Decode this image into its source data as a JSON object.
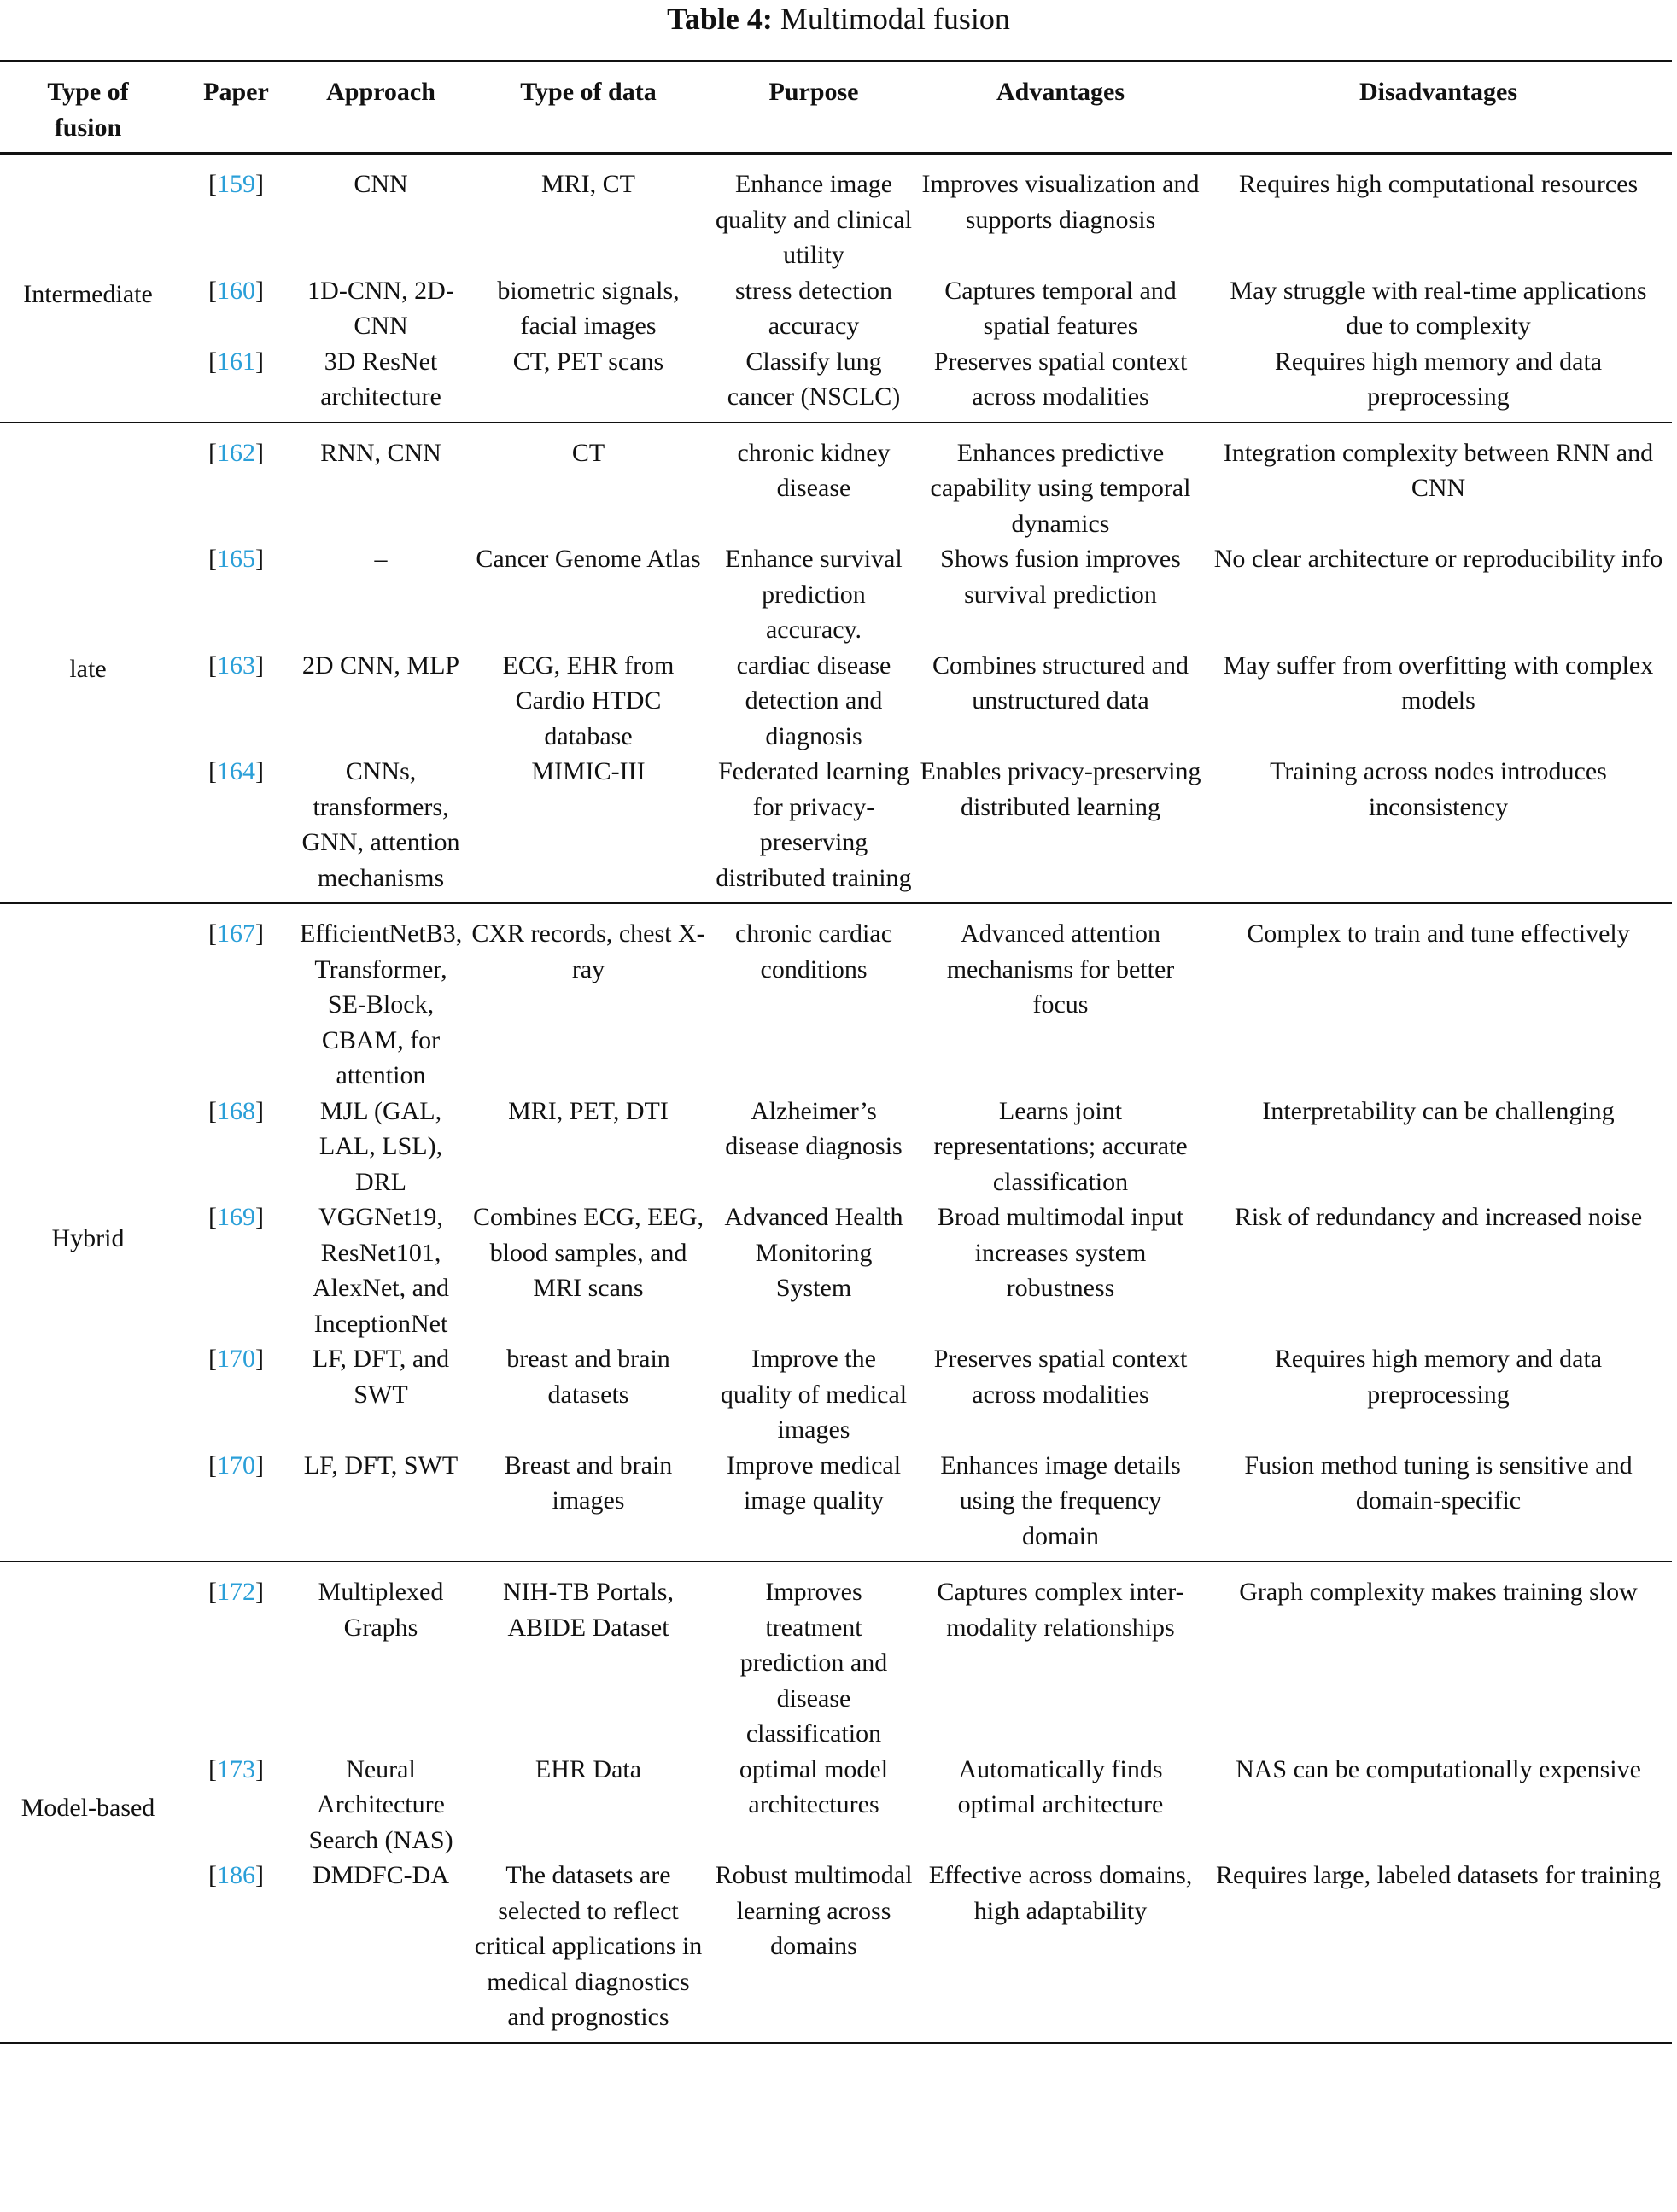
{
  "title": {
    "label": "Table 4:",
    "text": " Multimodal fusion"
  },
  "headers": [
    "Type of fusion",
    "Paper",
    "Approach",
    "Type of data",
    "Purpose",
    "Advantages",
    "Disadvantages"
  ],
  "groups": [
    {
      "type": "Intermediate",
      "rows": [
        [
          "159",
          "CNN",
          "MRI, CT",
          "Enhance image quality and clinical utility",
          "Improves visualization and supports diagnosis",
          "Requires high computational resources"
        ],
        [
          "160",
          "1D-CNN, 2D-CNN",
          "biometric signals, facial images",
          "stress detection accuracy",
          "Captures temporal and spatial features",
          "May struggle with real-time applications due to complexity"
        ],
        [
          "161",
          "3D ResNet architecture",
          "CT, PET scans",
          "Classify lung cancer (NSCLC)",
          "Preserves spatial context across modalities",
          "Requires high memory and data preprocessing"
        ]
      ]
    },
    {
      "type": "late",
      "rows": [
        [
          "162",
          "RNN, CNN",
          "CT",
          "chronic kidney disease",
          "Enhances predictive capability using temporal dynamics",
          "Integration complexity between RNN and CNN"
        ],
        [
          "165",
          "–",
          "Cancer Genome Atlas",
          "Enhance survival prediction accuracy.",
          "Shows fusion improves survival prediction",
          "No clear architecture or reproducibility info"
        ],
        [
          "163",
          "2D CNN, MLP",
          "ECG, EHR from Cardio HTDC database",
          "cardiac disease detection and diagnosis",
          "Combines structured and unstructured data",
          "May suffer from overfitting with complex models"
        ],
        [
          "164",
          "CNNs, transformers, GNN, attention mechanisms",
          "MIMIC-III",
          "Federated learning for privacy-preserving distributed training",
          "Enables privacy-preserving distributed learning",
          "Training across nodes introduces inconsistency"
        ]
      ]
    },
    {
      "type": "Hybrid",
      "rows": [
        [
          "167",
          "EfficientNetB3, Transformer, SE-Block, CBAM, for attention",
          "CXR records, chest X-ray",
          "chronic cardiac conditions",
          "Advanced attention mechanisms for better focus",
          "Complex to train and tune effectively"
        ],
        [
          "168",
          "MJL (GAL, LAL, LSL), DRL",
          "MRI, PET, DTI",
          "Alzheimer’s disease diagnosis",
          "Learns joint representations; accurate classification",
          "Interpretability can be challenging"
        ],
        [
          "169",
          "VGGNet19, ResNet101, AlexNet, and InceptionNet",
          "Combines ECG, EEG, blood samples, and MRI scans",
          "Advanced Health Monitoring System",
          "Broad multimodal input increases system robustness",
          "Risk of redundancy and increased noise"
        ],
        [
          "170",
          "LF, DFT, and SWT",
          "breast and brain datasets",
          "Improve the quality of medical images",
          "Preserves spatial context across modalities",
          "Requires high memory and data preprocessing"
        ],
        [
          "170",
          "LF, DFT, SWT",
          "Breast and brain images",
          "Improve medical image quality",
          "Enhances image details using the frequency domain",
          "Fusion method tuning is sensitive and domain-specific"
        ]
      ]
    },
    {
      "type": "Model-based",
      "rows": [
        [
          "172",
          "Multiplexed Graphs",
          "NIH-TB Portals, ABIDE Dataset",
          "Improves treatment prediction and disease classification",
          "Captures complex inter-modality relationships",
          "Graph complexity makes training slow"
        ],
        [
          "173",
          "Neural Architecture Search (NAS)",
          "EHR Data",
          "optimal model architectures",
          "Automatically finds optimal architecture",
          "NAS can be computationally expensive"
        ],
        [
          "186",
          "DMDFC-DA",
          "The datasets are selected to reflect critical applications in medical diagnostics and prognostics",
          "Robust multimodal learning across domains",
          "Effective across domains, high adaptability",
          "Requires large, labeled datasets for training"
        ]
      ]
    }
  ]
}
